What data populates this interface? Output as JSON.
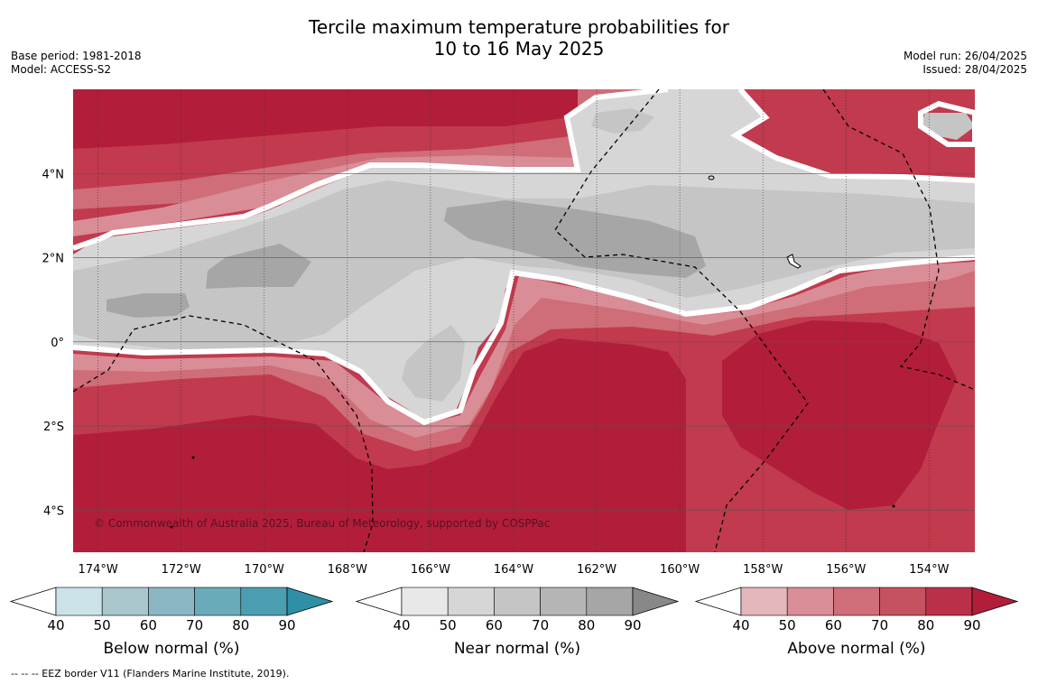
{
  "title": {
    "line1": "Tercile maximum temperature probabilities for",
    "line2": "10 to 16 May 2025"
  },
  "meta": {
    "base_period": "Base period: 1981-2018",
    "model": "Model: ACCESS-S2",
    "model_run": "Model run: 26/04/2025",
    "issued": "Issued: 28/04/2025"
  },
  "map": {
    "lon_range": [
      -174.6,
      -152.9
    ],
    "lat_range": [
      -5.0,
      6.0
    ],
    "lon_ticks": [
      "174°W",
      "172°W",
      "170°W",
      "168°W",
      "166°W",
      "164°W",
      "162°W",
      "160°W",
      "158°W",
      "156°W",
      "154°W"
    ],
    "lon_tick_values": [
      -174,
      -172,
      -170,
      -168,
      -166,
      -164,
      -162,
      -160,
      -158,
      -156,
      -154
    ],
    "lat_ticks": [
      "4°N",
      "2°N",
      "0°",
      "2°S",
      "4°S"
    ],
    "lat_tick_values": [
      4,
      2,
      0,
      -2,
      -4
    ],
    "copyright": "© Commonwealth of Australia 2025, Bureau of Meteorology, supported by COSPPac",
    "colors": {
      "above_high": "#b21e3a",
      "above_mid": "#c13a4d",
      "above_low": "#cf6d78",
      "above_light": "#d98d96",
      "near_low": "#d6d6d6",
      "near_mid": "#c5c5c5",
      "near_high": "#a6a6a6"
    }
  },
  "colorbars": [
    {
      "title": "Below normal (%)",
      "labels": [
        "40",
        "50",
        "60",
        "70",
        "80",
        "90"
      ],
      "colors": [
        "#cae2e8",
        "#a8c6cc",
        "#8ab7c3",
        "#6aabb9",
        "#4b9eb0"
      ],
      "end_color": "#2e8fa5"
    },
    {
      "title": "Near normal (%)",
      "labels": [
        "40",
        "50",
        "60",
        "70",
        "80",
        "90"
      ],
      "colors": [
        "#e8e8e8",
        "#d6d6d6",
        "#c5c5c5",
        "#b5b5b5",
        "#a6a6a6"
      ],
      "end_color": "#888888"
    },
    {
      "title": "Above normal (%)",
      "labels": [
        "40",
        "50",
        "60",
        "70",
        "80",
        "90"
      ],
      "colors": [
        "#e3b7bc",
        "#d98d96",
        "#cf6d78",
        "#c5525f",
        "#bb3049"
      ],
      "end_color": "#b21e3a"
    }
  ],
  "footnote": "-- -- -- EEZ border V11 (Flanders Marine Institute, 2019)."
}
